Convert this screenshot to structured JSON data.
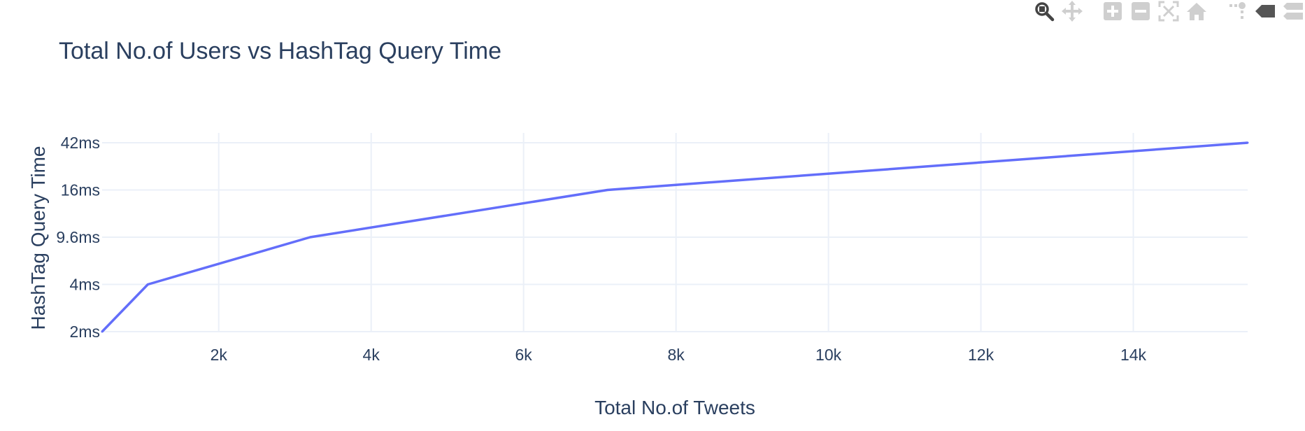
{
  "title": "Total No.of Users vs HashTag Query Time",
  "modebar": {
    "icons": [
      "zoom-icon",
      "pan-icon",
      "zoom-in-icon",
      "zoom-out-icon",
      "autoscale-icon",
      "reset-axes-icon",
      "spike-lines-icon",
      "hover-closest-icon",
      "hover-compare-icon"
    ],
    "color": "#7f7f7f"
  },
  "chart_data": {
    "type": "line",
    "title": "Total No.of Users vs HashTag Query Time",
    "xlabel": "Total No.of Tweets",
    "ylabel": "HashTag Query Time",
    "x_range": [
      470,
      15500
    ],
    "x_ticks": [
      {
        "value": 2000,
        "label": "2k"
      },
      {
        "value": 4000,
        "label": "4k"
      },
      {
        "value": 6000,
        "label": "6k"
      },
      {
        "value": 8000,
        "label": "8k"
      },
      {
        "value": 10000,
        "label": "10k"
      },
      {
        "value": 12000,
        "label": "12k"
      },
      {
        "value": 14000,
        "label": "14k"
      }
    ],
    "y_categories": [
      "2ms",
      "4ms",
      "9.6ms",
      "16ms",
      "42ms"
    ],
    "series": [
      {
        "color": "#636efa",
        "points": [
          {
            "x": 470,
            "y": "2ms"
          },
          {
            "x": 1070,
            "y": "4ms"
          },
          {
            "x": 3200,
            "y": "9.6ms"
          },
          {
            "x": 7100,
            "y": "16ms"
          },
          {
            "x": 15500,
            "y": "42ms"
          }
        ]
      }
    ],
    "grid": true
  }
}
